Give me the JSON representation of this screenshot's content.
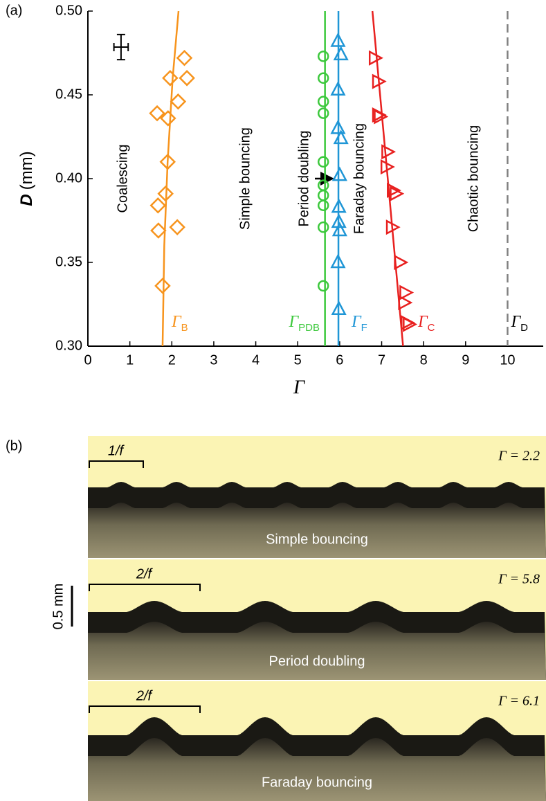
{
  "chart_data": {
    "type": "scatter",
    "panel_label": "(a)",
    "xlabel": "Γ",
    "ylabel_symbol": "D",
    "ylabel_unit": "(mm)",
    "xlim": [
      0,
      10.85
    ],
    "ylim": [
      0.3,
      0.5
    ],
    "xticks": [
      0,
      1,
      2,
      3,
      4,
      5,
      6,
      7,
      8,
      9,
      10
    ],
    "yticks": [
      {
        "value": 0.3,
        "label": "0.30"
      },
      0.35,
      {
        "value": 0.4,
        "label": "0.40"
      },
      0.45,
      {
        "value": 0.5,
        "label": "0.50"
      }
    ],
    "series": [
      {
        "name": "Γ",
        "subscript": "B",
        "color": "#f7941d",
        "marker": "diamond",
        "x": [
          2.3,
          1.96,
          2.36,
          2.15,
          1.65,
          1.91,
          1.9,
          1.85,
          1.67,
          1.68,
          2.13,
          1.78
        ],
        "values": [
          0.472,
          0.46,
          0.46,
          0.446,
          0.439,
          0.436,
          0.41,
          0.391,
          0.384,
          0.369,
          0.371,
          0.336
        ],
        "fit": {
          "x": [
            1.78,
            1.82,
            1.9,
            2.02,
            2.16
          ],
          "y": [
            0.3,
            0.36,
            0.41,
            0.46,
            0.5
          ]
        }
      },
      {
        "name": "Γ",
        "subscript": "PDB",
        "color": "#3cc83c",
        "marker": "circle",
        "x": [
          5.61,
          5.61,
          5.61,
          5.61,
          5.61,
          5.61,
          5.61,
          5.61,
          5.61,
          5.61
        ],
        "values": [
          0.473,
          0.46,
          0.446,
          0.439,
          0.41,
          0.396,
          0.39,
          0.384,
          0.371,
          0.336
        ],
        "fit": {
          "x": [
            5.65,
            5.65
          ],
          "y": [
            0.3,
            0.5
          ]
        }
      },
      {
        "name": "Γ",
        "subscript": "F",
        "color": "#1f96d6",
        "marker": "triangle-up",
        "x": [
          5.96,
          6.03,
          5.96,
          5.96,
          6.03,
          6.0,
          5.98,
          5.98,
          6.0,
          5.96,
          5.98
        ],
        "values": [
          0.482,
          0.474,
          0.453,
          0.43,
          0.424,
          0.402,
          0.383,
          0.374,
          0.369,
          0.35,
          0.322
        ],
        "fit": {
          "x": [
            5.97,
            5.97
          ],
          "y": [
            0.3,
            0.5
          ]
        }
      },
      {
        "name": "Γ",
        "subscript": "C",
        "color": "#e8201f",
        "marker": "triangle-right",
        "x": [
          6.83,
          6.91,
          6.91,
          6.95,
          7.13,
          7.11,
          7.26,
          7.33,
          7.24,
          7.43,
          7.56,
          7.53,
          7.59,
          7.64
        ],
        "values": [
          0.472,
          0.458,
          0.438,
          0.437,
          0.416,
          0.407,
          0.393,
          0.391,
          0.371,
          0.35,
          0.332,
          0.326,
          0.314,
          0.313
        ],
        "fit": {
          "x": [
            7.51,
            6.78
          ],
          "y": [
            0.3,
            0.5
          ]
        }
      }
    ],
    "thresholds": [
      {
        "name": "Γ",
        "subscript": "D",
        "x": 10,
        "color": "#808080"
      }
    ],
    "regions": [
      "Coalescing",
      "Simple bouncing",
      "Period doubling",
      "Faraday bouncing",
      "Chaotic bouncing"
    ],
    "error_bar": {
      "x": 0.79,
      "y": 0.4785,
      "xerr": 0.17,
      "yerr": 0.0075
    }
  },
  "panel_b": {
    "label": "(b)",
    "scale_bar": "0.5 mm",
    "strips": [
      {
        "period": "1/f",
        "gamma": "Γ = 2.2",
        "regime": "Simple bouncing"
      },
      {
        "period": "2/f",
        "gamma": "Γ = 5.8",
        "regime": "Period doubling"
      },
      {
        "period": "2/f",
        "gamma": "Γ = 6.1",
        "regime": "Faraday bouncing"
      }
    ]
  }
}
